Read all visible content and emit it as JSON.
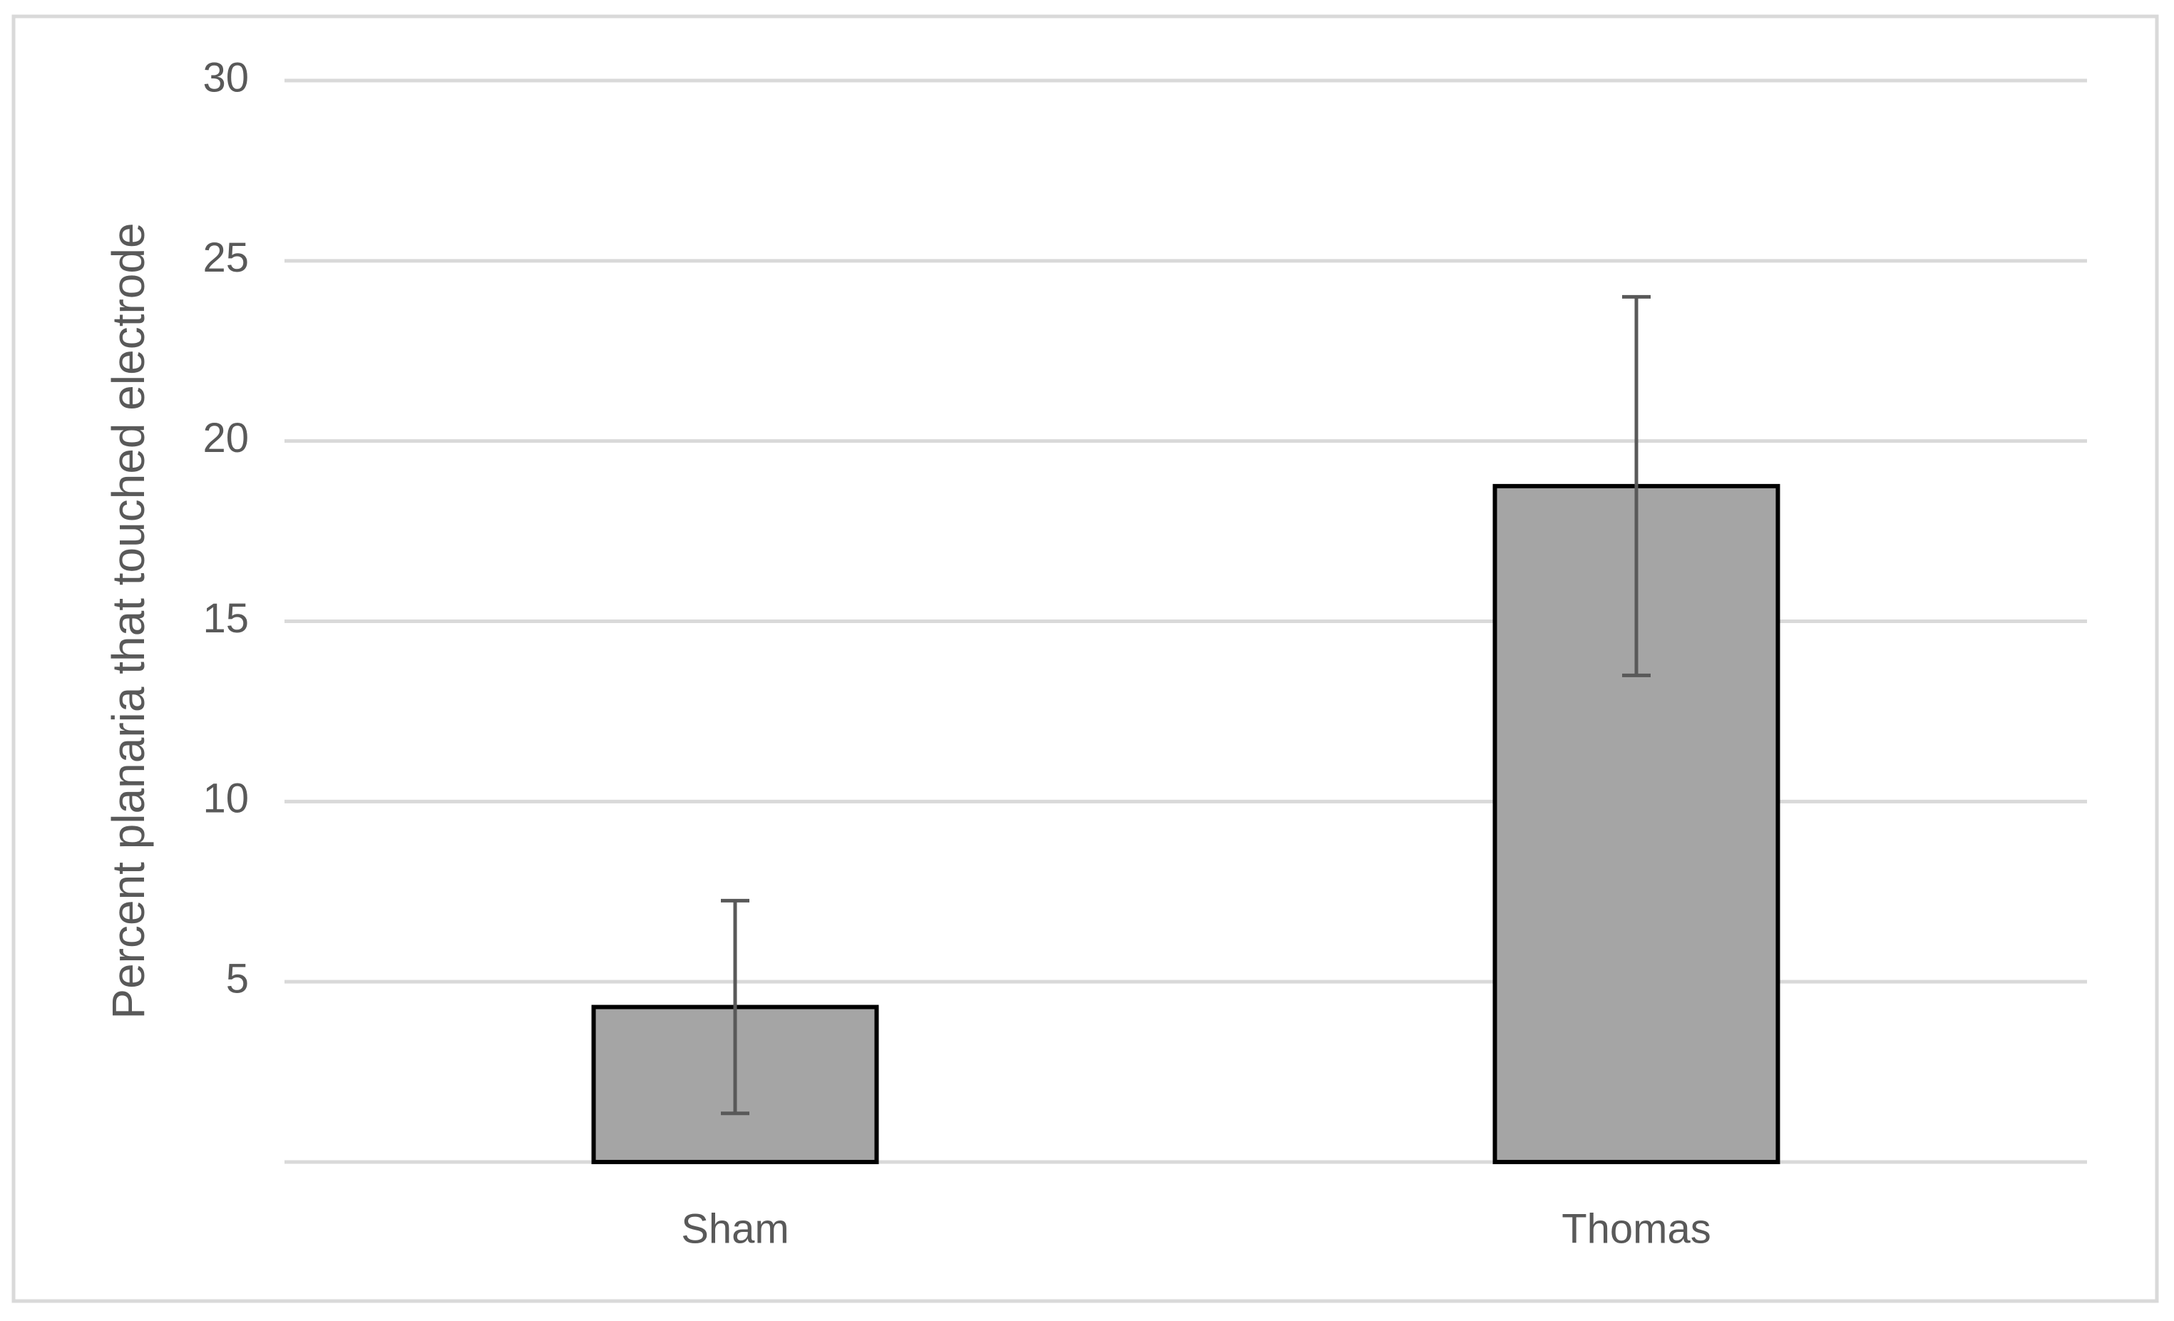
{
  "chart_data": {
    "type": "bar",
    "y_axis_label": "Percent planaria that touched electrode",
    "categories": [
      "Sham",
      "Thomas"
    ],
    "values": [
      4.3,
      18.75
    ],
    "errors": [
      2.95,
      5.25
    ],
    "color": "#a5a5a5",
    "edge_color": "#000000",
    "error_color": "#595959",
    "ylim": [
      0,
      30
    ],
    "yticks": [
      5,
      10,
      15,
      20,
      25,
      30
    ],
    "grid": true
  }
}
